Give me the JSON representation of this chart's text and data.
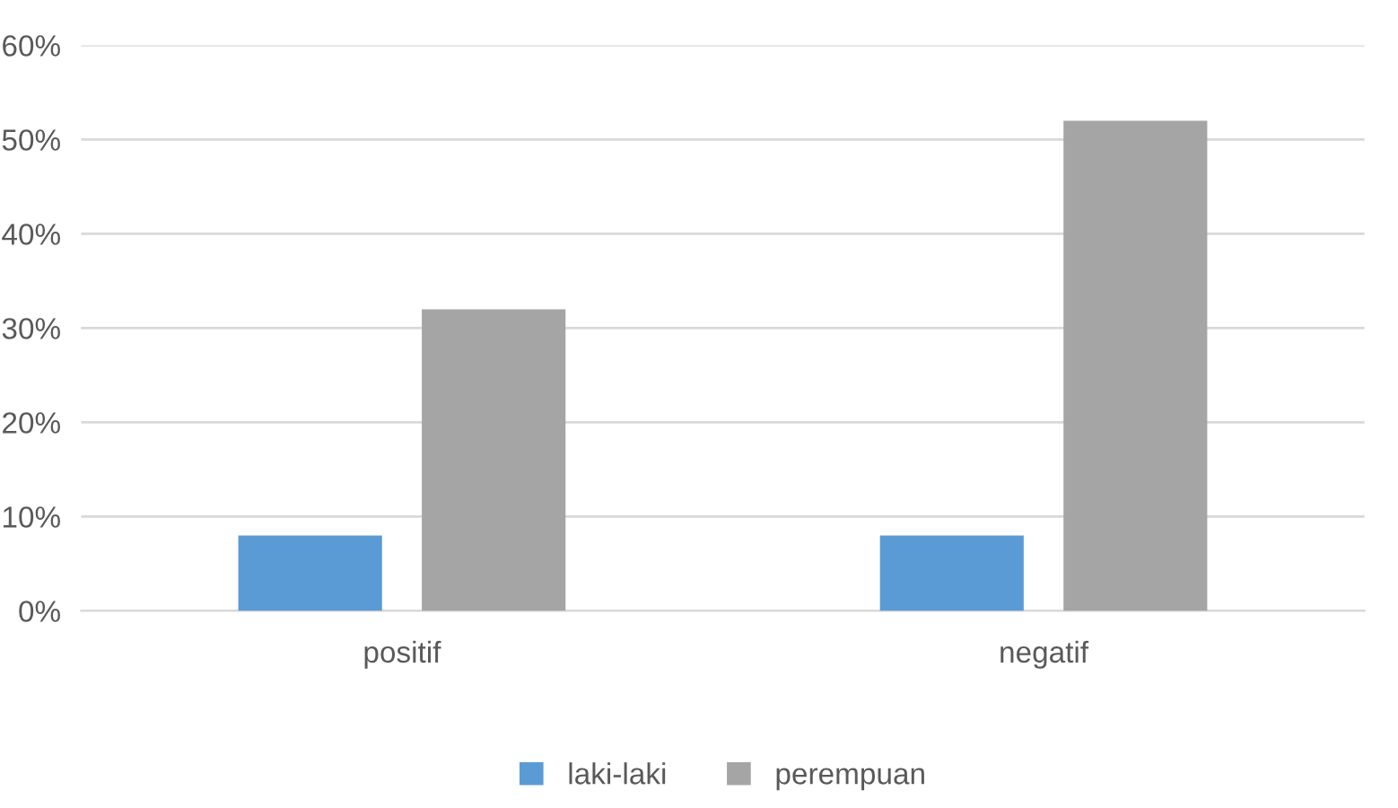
{
  "chart_data": {
    "type": "bar",
    "categories": [
      "positif",
      "negatif"
    ],
    "series": [
      {
        "name": "laki-laki",
        "color": "#5b9bd5",
        "values": [
          8,
          8
        ]
      },
      {
        "name": "perempuan",
        "color": "#a5a5a5",
        "values": [
          32,
          52
        ]
      }
    ],
    "ylim": [
      0,
      60
    ],
    "yticks": [
      {
        "value": 0,
        "label": "0%"
      },
      {
        "value": 10,
        "label": "10%"
      },
      {
        "value": 20,
        "label": "20%"
      },
      {
        "value": 30,
        "label": "30%"
      },
      {
        "value": 40,
        "label": "40%"
      },
      {
        "value": 50,
        "label": "50%"
      },
      {
        "value": 60,
        "label": "60%"
      }
    ],
    "grid": "y",
    "legend": "bottom"
  }
}
